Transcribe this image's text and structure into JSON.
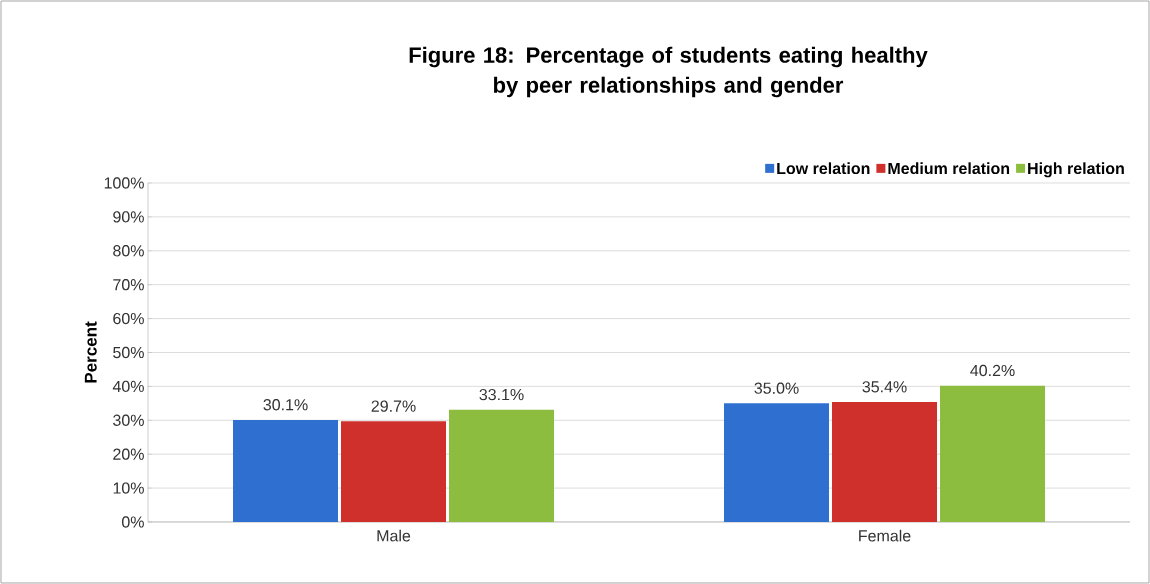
{
  "chart_data": {
    "type": "bar",
    "title": "Figure 18: Percentage of students eating healthy\nby peer relationships and gender",
    "ylabel": "Percent",
    "categories": [
      "Male",
      "Female"
    ],
    "series": [
      {
        "name": "Low relation",
        "color": "#2f6fcf",
        "values": [
          30.1,
          35.0
        ],
        "value_labels": [
          "30.1%",
          "35.0%"
        ]
      },
      {
        "name": "Medium relation",
        "color": "#d0302c",
        "values": [
          29.7,
          35.4
        ],
        "value_labels": [
          "29.7%",
          "35.4%"
        ]
      },
      {
        "name": "High relation",
        "color": "#8cbd3f",
        "values": [
          33.1,
          40.2
        ],
        "value_labels": [
          "33.1%",
          "40.2%"
        ]
      }
    ],
    "ylim": [
      0,
      100
    ],
    "yticks": [
      {
        "value": 0,
        "label": "0%"
      },
      {
        "value": 10,
        "label": "10%"
      },
      {
        "value": 20,
        "label": "20%"
      },
      {
        "value": 30,
        "label": "30%"
      },
      {
        "value": 40,
        "label": "40%"
      },
      {
        "value": 50,
        "label": "50%"
      },
      {
        "value": 60,
        "label": "60%"
      },
      {
        "value": 70,
        "label": "70%"
      },
      {
        "value": 80,
        "label": "80%"
      },
      {
        "value": 90,
        "label": "90%"
      },
      {
        "value": 100,
        "label": "100%"
      }
    ],
    "grid": "y",
    "legend": "top right"
  }
}
